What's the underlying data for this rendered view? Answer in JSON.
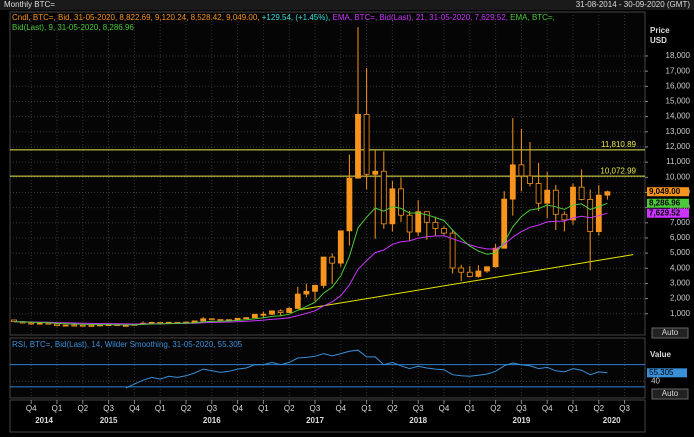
{
  "header": {
    "title": "Monthly BTC=",
    "range": "31-08-2014 - 30-09-2020 (GMT)"
  },
  "auto_button": "Auto",
  "x_axis": {
    "quarters": [
      "Q4",
      "Q1",
      "Q2",
      "Q3",
      "Q4",
      "Q1",
      "Q2",
      "Q3",
      "Q4",
      "Q1",
      "Q2",
      "Q3",
      "Q4",
      "Q1",
      "Q2",
      "Q3",
      "Q4",
      "Q1",
      "Q2",
      "Q3",
      "Q4",
      "Q1",
      "Q2",
      "Q3"
    ],
    "years": [
      "2014",
      "2015",
      "2016",
      "2017",
      "2018",
      "2019",
      "2020"
    ]
  },
  "chart_data": [
    {
      "type": "candlestick",
      "y_label": [
        "Price",
        "USD"
      ],
      "legend": "Cndl, BTC=, Bid, 31-05-2020, 8,822.69, 9,120.24, 8,528.42, 9,049.00,",
      "change": "+129.54, (+1.45%),",
      "color": "#f7941d",
      "change_color": "#33e0e0",
      "candles": {
        "open": [
          590,
          480,
          390,
          340,
          380,
          320,
          220,
          255,
          245,
          235,
          230,
          265,
          285,
          230,
          237,
          315,
          378,
          430,
          370,
          437,
          416,
          450,
          530,
          670,
          625,
          575,
          610,
          700,
          745,
          965,
          970,
          1190,
          1080,
          1350,
          2300,
          2480,
          2870,
          4740,
          4340,
          6470,
          9950,
          14150,
          10200,
          10400,
          6930,
          9240,
          7500,
          6390,
          7730,
          7030,
          6630,
          6320,
          4020,
          3740,
          3460,
          3820,
          4100,
          5320,
          8560,
          10820,
          10090,
          9590,
          8290,
          9150,
          7560,
          7190,
          9350,
          8540,
          6420,
          8822.69
        ],
        "high": [
          600,
          500,
          420,
          460,
          390,
          320,
          270,
          300,
          260,
          250,
          270,
          315,
          285,
          245,
          330,
          500,
          470,
          460,
          440,
          440,
          470,
          550,
          780,
          690,
          630,
          620,
          720,
          760,
          980,
          1150,
          1200,
          1290,
          1440,
          2780,
          2980,
          2920,
          4740,
          4980,
          6470,
          11500,
          19900,
          17200,
          11800,
          11700,
          9750,
          9990,
          7780,
          8490,
          7750,
          7400,
          6780,
          6560,
          4230,
          4140,
          4200,
          4120,
          5600,
          9080,
          13900,
          13200,
          12330,
          10950,
          10360,
          9500,
          7750,
          9590,
          10520,
          9190,
          9480,
          9120.24
        ],
        "low": [
          470,
          370,
          280,
          320,
          300,
          170,
          210,
          240,
          210,
          225,
          220,
          255,
          200,
          225,
          235,
          300,
          350,
          350,
          365,
          400,
          410,
          440,
          520,
          610,
          470,
          570,
          605,
          680,
          740,
          750,
          920,
          890,
          1060,
          1340,
          2080,
          1830,
          2680,
          2970,
          4100,
          5500,
          9900,
          9200,
          5950,
          6600,
          6430,
          7050,
          5800,
          6120,
          5880,
          6150,
          6200,
          3650,
          3160,
          3400,
          3380,
          3700,
          4050,
          5320,
          7470,
          9070,
          9400,
          7780,
          7300,
          6520,
          6430,
          6870,
          8480,
          3860,
          6150,
          8528.42
        ],
        "close": [
          480,
          390,
          340,
          380,
          320,
          220,
          255,
          245,
          235,
          230,
          265,
          285,
          230,
          237,
          315,
          378,
          430,
          370,
          437,
          416,
          450,
          530,
          670,
          625,
          575,
          610,
          700,
          745,
          965,
          970,
          1190,
          1080,
          1350,
          2300,
          2480,
          2870,
          4740,
          4340,
          6470,
          9950,
          14150,
          10200,
          10400,
          6930,
          9240,
          7500,
          6390,
          7730,
          7030,
          6630,
          6320,
          4020,
          3740,
          3460,
          3820,
          4100,
          5320,
          8560,
          10820,
          10090,
          9590,
          8290,
          9150,
          7560,
          7190,
          9350,
          8540,
          6420,
          8820,
          9049
        ],
        "last_label": "9,049.00"
      },
      "series": [
        {
          "name": "EMA, BTC=, Bid(Last), 21, 31-05-2020, 7,629.52,",
          "color": "#cc33ff",
          "last_label": "7,629.52",
          "values": [
            480,
            472,
            460,
            453,
            441,
            421,
            406,
            391,
            377,
            364,
            355,
            349,
            338,
            329,
            328,
            332,
            341,
            344,
            352,
            358,
            366,
            381,
            407,
            427,
            440,
            456,
            478,
            502,
            544,
            583,
            638,
            678,
            739,
            881,
            1026,
            1194,
            1516,
            1773,
            2200,
            2905,
            3927,
            4497,
            5034,
            5206,
            5573,
            5748,
            5806,
            5981,
            6076,
            6126,
            6144,
            5951,
            5750,
            5542,
            5385,
            5268,
            5273,
            5572,
            6049,
            6417,
            6705,
            6849,
            7058,
            7104,
            7112,
            7316,
            7427,
            7335,
            7470,
            7629.52
          ]
        },
        {
          "name": "EMA, BTC=, Bid(Last), 9, 31-05-2020, 8,286.96",
          "color": "#4cc93a",
          "last_label": "8,286.96",
          "values": [
            480,
            462,
            438,
            426,
            405,
            368,
            345,
            325,
            307,
            292,
            287,
            287,
            275,
            268,
            277,
            297,
            324,
            333,
            354,
            366,
            383,
            412,
            464,
            496,
            512,
            532,
            566,
            602,
            675,
            734,
            825,
            876,
            971,
            1237,
            1486,
            1763,
            2358,
            2754,
            3497,
            4788,
            6660,
            7368,
            7974,
            7765,
            8060,
            7948,
            7636,
            7655,
            7530,
            7350,
            7144,
            6519,
            5963,
            5462,
            5134,
            4927,
            5006,
            5717,
            6738,
            7408,
            7844,
            7933,
            8176,
            8053,
            7880,
            8174,
            8247,
            7882,
            8070,
            8286.96
          ]
        }
      ],
      "hlines": [
        {
          "value": 11810.89,
          "label": "11,810.89"
        },
        {
          "value": 10072.99,
          "label": "10,072.99"
        }
      ],
      "hline_color": "#e8e84a",
      "trendline": {
        "x": [
          33,
          72
        ],
        "y": [
          1250,
          4900
        ],
        "color": "#e6e600"
      },
      "ylim": [
        -400,
        20900
      ],
      "yticks": [
        {
          "value": 1000,
          "label": "1,000"
        },
        {
          "value": 2000,
          "label": "2,000"
        },
        {
          "value": 3000,
          "label": "3,000"
        },
        {
          "value": 4000,
          "label": "4,000"
        },
        {
          "value": 5000,
          "label": "5,000"
        },
        {
          "value": 6000,
          "label": "6,000"
        },
        {
          "value": 7000,
          "label": "7,000"
        },
        {
          "value": 8000,
          "label": "8,000"
        },
        {
          "value": 9000,
          "label": "9,000"
        },
        {
          "value": 10000,
          "label": "10,000"
        },
        {
          "value": 11000,
          "label": "11,000"
        },
        {
          "value": 12000,
          "label": "12,000"
        },
        {
          "value": 13000,
          "label": "13,000"
        },
        {
          "value": 14000,
          "label": "14,000"
        },
        {
          "value": 15000,
          "label": "15,000"
        },
        {
          "value": 16000,
          "label": "16,000"
        },
        {
          "value": 17000,
          "label": "17,000"
        },
        {
          "value": 18000,
          "label": "18,000"
        }
      ],
      "grid": true
    },
    {
      "type": "line",
      "y_label": [
        "Value"
      ],
      "legend": "RSI, BTC=, Bid(Last), 14, Wilder Smoothing, 31-05-2020, 55.305",
      "series": [
        {
          "name": "RSI",
          "color": "#3a8fd9",
          "values": [
            null,
            null,
            null,
            null,
            null,
            null,
            null,
            null,
            null,
            null,
            null,
            null,
            null,
            28,
            35,
            42,
            47,
            44,
            49,
            47,
            50,
            55,
            62,
            59,
            56,
            58,
            62,
            64,
            70,
            70,
            74,
            70,
            74,
            82,
            83,
            85,
            90,
            86,
            90,
            94,
            96,
            84,
            84,
            70,
            74,
            68,
            63,
            67,
            64,
            62,
            61,
            52,
            50,
            49,
            51,
            53,
            58,
            68,
            73,
            70,
            68,
            63,
            65,
            59,
            57,
            63,
            60,
            52,
            57,
            55.305
          ]
        }
      ],
      "levels": [
        70,
        30
      ],
      "level_color": "#2f7fd0",
      "ylim": [
        10,
        100
      ],
      "yticks": [
        40
      ],
      "grid": true
    }
  ]
}
